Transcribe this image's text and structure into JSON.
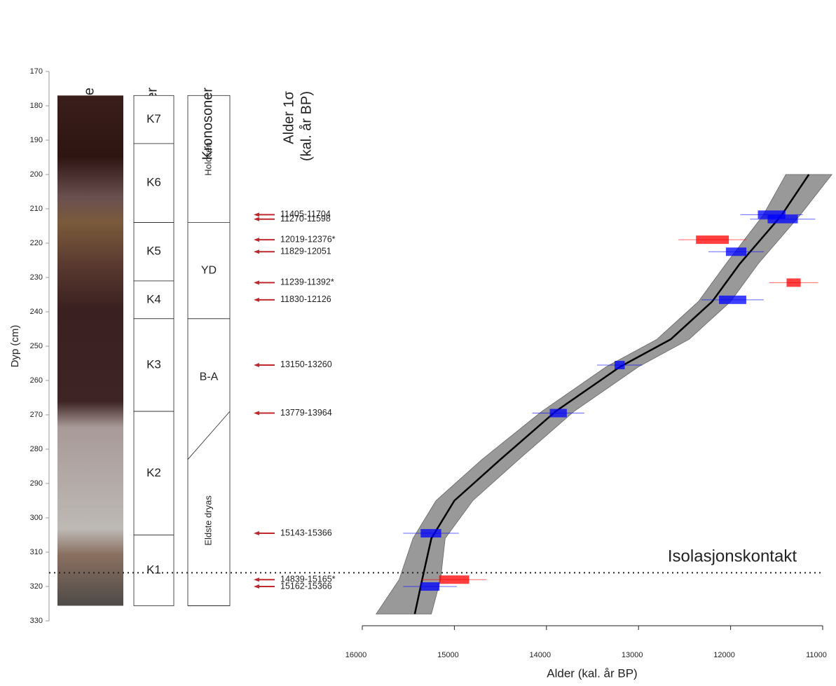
{
  "chart_data": {
    "type": "age-depth",
    "ylabel": "Dyp (cm)",
    "xlabel": "Alder (kal. år BP)",
    "ylim": [
      170,
      330
    ],
    "yticks": [
      170,
      180,
      190,
      200,
      210,
      220,
      230,
      240,
      250,
      260,
      270,
      280,
      290,
      300,
      310,
      320,
      330
    ],
    "xlim": [
      16000,
      11000
    ],
    "xticks": [
      16000,
      15000,
      14000,
      13000,
      12000,
      11000
    ],
    "headers": {
      "core": "Kjerne",
      "units": "Enheter",
      "zones": "Kronosoner",
      "dates": [
        "Alder 1σ",
        "(kal. år BP)"
      ]
    },
    "core": {
      "top": 177,
      "bottom": 325.6
    },
    "units": [
      {
        "label": "K7",
        "top": 177,
        "bottom": 191
      },
      {
        "label": "K6",
        "top": 191,
        "bottom": 214
      },
      {
        "label": "K5",
        "top": 214,
        "bottom": 231
      },
      {
        "label": "K4",
        "top": 231,
        "bottom": 242
      },
      {
        "label": "K3",
        "top": 242,
        "bottom": 269
      },
      {
        "label": "K2",
        "top": 269,
        "bottom": 305
      },
      {
        "label": "K1",
        "top": 305,
        "bottom": 325.6
      }
    ],
    "chronozones": [
      {
        "label": "Holocen",
        "top": [
          177,
          177
        ],
        "bottom": [
          214,
          214
        ],
        "rotated": true
      },
      {
        "label": "YD",
        "top": [
          214,
          214
        ],
        "bottom": [
          242,
          242
        ],
        "rotated": false
      },
      {
        "label": "B-A",
        "top": [
          242,
          242
        ],
        "bottom": [
          283,
          269
        ],
        "rotated": false
      },
      {
        "label": "Eldste dryas",
        "top": [
          283,
          269
        ],
        "bottom": [
          325.6,
          325.6
        ],
        "rotated": true
      }
    ],
    "dates": [
      {
        "label": "11405-11704",
        "depth": 211.7,
        "range": [
          11704,
          11405
        ],
        "color": "#0000ff"
      },
      {
        "label": "11270-11598",
        "depth": 213,
        "range": [
          11598,
          11270
        ],
        "color": "#0000ff"
      },
      {
        "label": "12019-12376*",
        "depth": 219,
        "range": [
          12376,
          12019
        ],
        "color": "#ff0000"
      },
      {
        "label": "11829-12051",
        "depth": 222.5,
        "range": [
          12051,
          11829
        ],
        "color": "#0000ff"
      },
      {
        "label": "11239-11392*",
        "depth": 231.5,
        "range": [
          11392,
          11239
        ],
        "color": "#ff0000"
      },
      {
        "label": "11830-12126",
        "depth": 236.5,
        "range": [
          12126,
          11830
        ],
        "color": "#0000ff"
      },
      {
        "label": "13150-13260",
        "depth": 255.5,
        "range": [
          13260,
          13150
        ],
        "color": "#0000ff"
      },
      {
        "label": "13779-13964",
        "depth": 269.5,
        "range": [
          13964,
          13779
        ],
        "color": "#0000ff"
      },
      {
        "label": "15143-15366",
        "depth": 304.5,
        "range": [
          15366,
          15143
        ],
        "color": "#0000ff"
      },
      {
        "label": "14839-15165*",
        "depth": 318,
        "range": [
          15165,
          14839
        ],
        "color": "#ff0000"
      },
      {
        "label": "15162-15366",
        "depth": 320,
        "range": [
          15366,
          15162
        ],
        "color": "#0000ff"
      }
    ],
    "model": {
      "depth": [
        200,
        212,
        226,
        237,
        248,
        256,
        269,
        283,
        295,
        306,
        318,
        328
      ],
      "age": [
        11150,
        11450,
        11900,
        12200,
        12650,
        13200,
        13900,
        14500,
        15000,
        15250,
        15350,
        15430
      ],
      "age_old": [
        11400,
        11650,
        12050,
        12350,
        12800,
        13350,
        14050,
        14700,
        15200,
        15450,
        15600,
        15850
      ],
      "age_young": [
        10900,
        11250,
        11700,
        12000,
        12450,
        13000,
        13700,
        14300,
        14800,
        15100,
        15150,
        15250
      ],
      "color": "#000000",
      "band_color": "#999999"
    },
    "contact": {
      "label": "Isolasjonskontakt",
      "depth": 316
    }
  }
}
